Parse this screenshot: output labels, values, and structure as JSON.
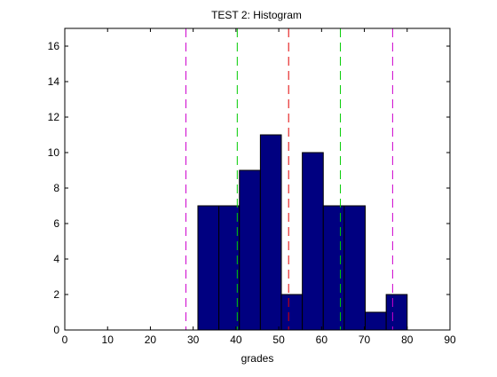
{
  "chart_data": {
    "type": "bar",
    "title": "TEST 2: Histogram",
    "xlabel": "grades",
    "ylabel": "",
    "xlim": [
      0,
      90
    ],
    "ylim": [
      0,
      17
    ],
    "xticks": [
      0,
      10,
      20,
      30,
      40,
      50,
      60,
      70,
      80,
      90
    ],
    "yticks": [
      0,
      2,
      4,
      6,
      8,
      10,
      12,
      14,
      16
    ],
    "grid": false,
    "bins": [
      {
        "start": 31.1,
        "end": 36.0,
        "count": 7
      },
      {
        "start": 36.0,
        "end": 40.8,
        "count": 7
      },
      {
        "start": 40.8,
        "end": 45.7,
        "count": 9
      },
      {
        "start": 45.7,
        "end": 50.6,
        "count": 11
      },
      {
        "start": 50.6,
        "end": 55.5,
        "count": 2
      },
      {
        "start": 55.5,
        "end": 60.4,
        "count": 10
      },
      {
        "start": 60.4,
        "end": 65.3,
        "count": 7
      },
      {
        "start": 65.3,
        "end": 70.2,
        "count": 7
      },
      {
        "start": 70.2,
        "end": 75.1,
        "count": 1
      },
      {
        "start": 75.1,
        "end": 80.0,
        "count": 2
      }
    ],
    "bar_color": "#000080",
    "vertical_lines": [
      {
        "x": 28.3,
        "color": "#cc00cc"
      },
      {
        "x": 40.3,
        "color": "#00cc00"
      },
      {
        "x": 52.3,
        "color": "#e00000"
      },
      {
        "x": 64.4,
        "color": "#00cc00"
      },
      {
        "x": 76.6,
        "color": "#cc00cc"
      }
    ]
  }
}
